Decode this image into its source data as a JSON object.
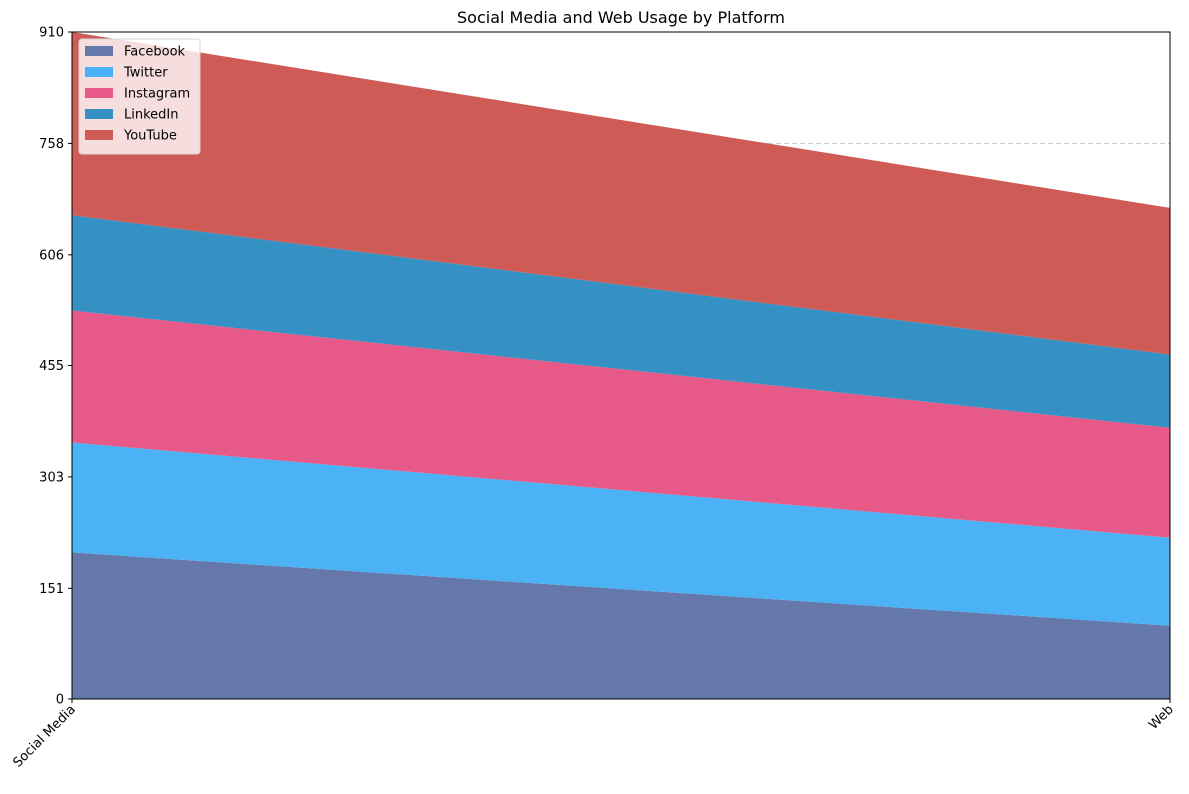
{
  "chart_data": {
    "type": "area",
    "stacked": true,
    "title": "Social Media and Web Usage by Platform",
    "xlabel": "",
    "ylabel": "",
    "categories": [
      "Social Media",
      "Web"
    ],
    "ylim": [
      0,
      910
    ],
    "yticks": [
      0,
      151,
      303,
      455,
      606,
      758,
      910
    ],
    "grid": "y-dashed",
    "legend_position": "top-left",
    "series": [
      {
        "name": "Facebook",
        "values": [
          200,
          100
        ],
        "color": "#6479aa"
      },
      {
        "name": "Twitter",
        "values": [
          150,
          120
        ],
        "color": "#4ab2f5"
      },
      {
        "name": "Instagram",
        "values": [
          180,
          150
        ],
        "color": "#e65988"
      },
      {
        "name": "LinkedIn",
        "values": [
          130,
          100
        ],
        "color": "#3590c4"
      },
      {
        "name": "YouTube",
        "values": [
          250,
          200
        ],
        "color": "#ce5b55"
      }
    ]
  }
}
